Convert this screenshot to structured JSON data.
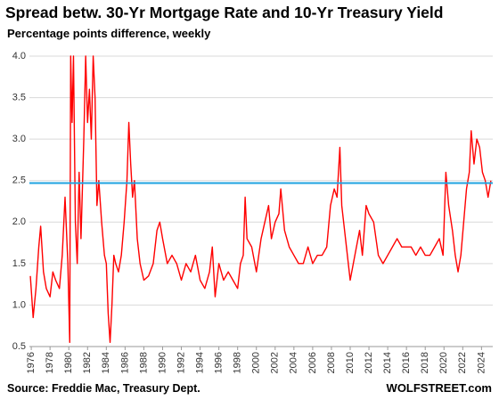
{
  "chart_data": {
    "type": "line",
    "title": "Spread betw. 30-Yr Mortgage Rate and 10-Yr Treasury Yield",
    "subtitle": "Percentage points difference, weekly",
    "source": "Source: Freddie Mac, Treasury Dept.",
    "brand": "WOLFSTREET.com",
    "color": "#ff0000",
    "reference_line": {
      "value": 2.47,
      "color": "#1fa3e0"
    },
    "grid": true,
    "xlim": [
      1975.8,
      2025.2
    ],
    "ylim": [
      0.5,
      4.0
    ],
    "xticks": [
      1976,
      1978,
      1980,
      1982,
      1984,
      1986,
      1988,
      1990,
      1992,
      1994,
      1996,
      1998,
      2000,
      2002,
      2004,
      2006,
      2008,
      2010,
      2012,
      2014,
      2016,
      2018,
      2020,
      2022,
      2024
    ],
    "yticks": [
      0.5,
      {
        "value": 1,
        "label": "1.0"
      },
      1.5,
      {
        "value": 2,
        "label": "2.0"
      },
      2.5,
      {
        "value": 3,
        "label": "3.0"
      },
      3.5,
      {
        "value": 4,
        "label": "4.0"
      }
    ],
    "x": [
      1975.9,
      1976.2,
      1976.5,
      1976.8,
      1977.0,
      1977.3,
      1977.6,
      1978.0,
      1978.3,
      1978.6,
      1979.0,
      1979.3,
      1979.6,
      1979.9,
      1980.1,
      1980.2,
      1980.35,
      1980.5,
      1980.7,
      1980.9,
      1981.1,
      1981.3,
      1981.6,
      1981.8,
      1982.0,
      1982.2,
      1982.4,
      1982.6,
      1982.8,
      1983.0,
      1983.2,
      1983.5,
      1983.8,
      1984.0,
      1984.2,
      1984.4,
      1984.6,
      1984.8,
      1985.0,
      1985.3,
      1985.6,
      1985.9,
      1986.2,
      1986.4,
      1986.6,
      1986.8,
      1987.0,
      1987.3,
      1987.6,
      1988.0,
      1988.5,
      1989.0,
      1989.4,
      1989.7,
      1990.0,
      1990.5,
      1991.0,
      1991.5,
      1992.0,
      1992.5,
      1993.0,
      1993.5,
      1994.0,
      1994.5,
      1995.0,
      1995.3,
      1995.6,
      1996.0,
      1996.5,
      1997.0,
      1997.5,
      1998.0,
      1998.3,
      1998.6,
      1998.8,
      1999.0,
      1999.5,
      2000.0,
      2000.5,
      2000.9,
      2001.3,
      2001.6,
      2002.0,
      2002.4,
      2002.6,
      2003.0,
      2003.5,
      2004.0,
      2004.5,
      2005.0,
      2005.5,
      2006.0,
      2006.5,
      2007.0,
      2007.5,
      2007.9,
      2008.3,
      2008.6,
      2008.9,
      2009.1,
      2009.5,
      2009.8,
      2010.0,
      2010.5,
      2011.0,
      2011.3,
      2011.7,
      2012.0,
      2012.5,
      2013.0,
      2013.5,
      2014.0,
      2014.5,
      2015.0,
      2015.5,
      2016.0,
      2016.5,
      2017.0,
      2017.5,
      2018.0,
      2018.5,
      2019.0,
      2019.5,
      2019.9,
      2020.2,
      2020.5,
      2020.9,
      2021.2,
      2021.5,
      2021.8,
      2022.1,
      2022.4,
      2022.7,
      2022.9,
      2023.2,
      2023.5,
      2023.8,
      2024.1,
      2024.4,
      2024.7,
      2025.0
    ],
    "values": [
      1.35,
      0.85,
      1.2,
      1.7,
      1.95,
      1.4,
      1.2,
      1.1,
      1.4,
      1.3,
      1.2,
      1.6,
      2.3,
      1.5,
      0.55,
      4.0,
      3.2,
      4.0,
      2.0,
      1.5,
      2.6,
      1.8,
      3.0,
      4.0,
      3.2,
      3.6,
      3.0,
      4.0,
      3.5,
      2.2,
      2.5,
      2.0,
      1.6,
      1.5,
      0.9,
      0.55,
      1.0,
      1.6,
      1.5,
      1.4,
      1.6,
      2.0,
      2.5,
      3.2,
      2.7,
      2.3,
      2.5,
      1.8,
      1.5,
      1.3,
      1.35,
      1.5,
      1.9,
      2.0,
      1.8,
      1.5,
      1.6,
      1.5,
      1.3,
      1.5,
      1.4,
      1.6,
      1.3,
      1.2,
      1.4,
      1.7,
      1.1,
      1.5,
      1.3,
      1.4,
      1.3,
      1.2,
      1.5,
      1.6,
      2.3,
      1.8,
      1.7,
      1.4,
      1.8,
      2.0,
      2.2,
      1.8,
      2.0,
      2.1,
      2.4,
      1.9,
      1.7,
      1.6,
      1.5,
      1.5,
      1.7,
      1.5,
      1.6,
      1.6,
      1.7,
      2.2,
      2.4,
      2.3,
      2.9,
      2.2,
      1.8,
      1.5,
      1.3,
      1.6,
      1.9,
      1.6,
      2.2,
      2.1,
      2.0,
      1.6,
      1.5,
      1.6,
      1.7,
      1.8,
      1.7,
      1.7,
      1.7,
      1.6,
      1.7,
      1.6,
      1.6,
      1.7,
      1.8,
      1.6,
      2.6,
      2.2,
      1.9,
      1.6,
      1.4,
      1.6,
      2.0,
      2.4,
      2.6,
      3.1,
      2.7,
      3.0,
      2.9,
      2.6,
      2.5,
      2.3,
      2.5
    ]
  }
}
